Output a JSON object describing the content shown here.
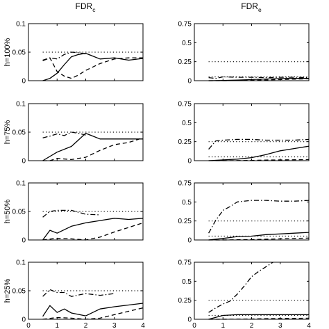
{
  "columns": [
    {
      "key": "c",
      "base": "FDR",
      "sub": "c"
    },
    {
      "key": "e",
      "base": "FDR",
      "sub": "e"
    }
  ],
  "rows": [
    "h=100%",
    "h=75%",
    "h=50%",
    "h=25%"
  ],
  "chart_data": [
    {
      "type": "line",
      "row": "h=100%",
      "col": "FDR_c",
      "xlim": [
        0,
        4
      ],
      "ylim": [
        0,
        0.1
      ],
      "yticks": [
        "0",
        "0.05",
        "0.1"
      ],
      "xticks": [],
      "series": [
        {
          "style": "solid",
          "x": [
            0.5,
            0.75,
            1,
            1.25,
            1.5,
            1.75,
            2,
            2.5,
            3,
            3.5,
            4
          ],
          "y": [
            0,
            0.004,
            0.013,
            0.028,
            0.042,
            0.046,
            0.048,
            0.038,
            0.04,
            0.036,
            0.039
          ]
        },
        {
          "style": "dashed",
          "x": [
            0.5,
            0.75,
            1,
            1.25,
            1.5,
            1.75,
            2,
            2.5,
            3,
            3.5,
            4
          ],
          "y": [
            0.036,
            0.04,
            0.016,
            0.008,
            0.004,
            0.01,
            0.018,
            0.03,
            0.038,
            0.04,
            0.04
          ]
        },
        {
          "style": "dashdot",
          "x": [
            0.5,
            0.75,
            1,
            1.25,
            1.5,
            1.75,
            2
          ],
          "y": [
            0.035,
            0.04,
            0.038,
            0.046,
            0.05,
            0.049,
            0.047
          ]
        },
        {
          "style": "dotted",
          "x": [
            0.5,
            4
          ],
          "y": [
            0.05,
            0.05
          ]
        }
      ]
    },
    {
      "type": "line",
      "row": "h=100%",
      "col": "FDR_e",
      "xlim": [
        0,
        4
      ],
      "ylim": [
        0,
        0.75
      ],
      "yticks": [
        "0",
        "0.25",
        "0.5",
        "0.75"
      ],
      "xticks": [],
      "series": [
        {
          "style": "solid",
          "x": [
            0.5,
            1,
            1.5,
            2,
            2.5,
            3,
            3.5,
            4
          ],
          "y": [
            0,
            0.003,
            0.008,
            0.015,
            0.022,
            0.028,
            0.03,
            0.03
          ]
        },
        {
          "style": "dashed",
          "x": [
            0.5,
            1,
            1.5,
            2,
            2.5,
            3,
            3.5,
            4
          ],
          "y": [
            0,
            0,
            0.002,
            0.005,
            0.01,
            0.015,
            0.02,
            0.025
          ]
        },
        {
          "style": "dashdot",
          "x": [
            0.5,
            0.75,
            1,
            1.5,
            2,
            2.5,
            3,
            3.5,
            4
          ],
          "y": [
            0.04,
            0.03,
            0.05,
            0.045,
            0.045,
            0.04,
            0.045,
            0.045,
            0.04
          ]
        },
        {
          "style": "dotted",
          "x": [
            0.5,
            4
          ],
          "y": [
            0.25,
            0.25
          ]
        },
        {
          "style": "dotted",
          "x": [
            0.5,
            4
          ],
          "y": [
            0.05,
            0.05
          ]
        }
      ]
    },
    {
      "type": "line",
      "row": "h=75%",
      "col": "FDR_c",
      "xlim": [
        0,
        4
      ],
      "ylim": [
        0,
        0.1
      ],
      "yticks": [
        "0",
        "0.05",
        "0.1"
      ],
      "xticks": [],
      "series": [
        {
          "style": "solid",
          "x": [
            0.5,
            1,
            1.5,
            2,
            2.5,
            3,
            3.5,
            4
          ],
          "y": [
            0,
            0.015,
            0.025,
            0.048,
            0.038,
            0.038,
            0.038,
            0.038
          ]
        },
        {
          "style": "dashed",
          "x": [
            0.5,
            0.75,
            1,
            1.5,
            2,
            2.5,
            3,
            3.5,
            4
          ],
          "y": [
            0,
            0,
            0.004,
            0.002,
            0.006,
            0.018,
            0.028,
            0.032,
            0.04
          ]
        },
        {
          "style": "dashdot",
          "x": [
            0.5,
            0.75,
            1,
            1.25,
            1.5,
            1.75,
            2
          ],
          "y": [
            0.04,
            0.043,
            0.047,
            0.044,
            0.05,
            0.048,
            0.045
          ]
        },
        {
          "style": "dotted",
          "x": [
            0.5,
            4
          ],
          "y": [
            0.05,
            0.05
          ]
        }
      ]
    },
    {
      "type": "line",
      "row": "h=75%",
      "col": "FDR_e",
      "xlim": [
        0,
        4
      ],
      "ylim": [
        0,
        0.75
      ],
      "yticks": [
        "0",
        "0.25",
        "0.5",
        "0.75"
      ],
      "xticks": [],
      "series": [
        {
          "style": "solid",
          "x": [
            0.5,
            1,
            1.5,
            2,
            2.5,
            3,
            3.5,
            4
          ],
          "y": [
            0,
            0.01,
            0.02,
            0.04,
            0.08,
            0.13,
            0.16,
            0.19
          ]
        },
        {
          "style": "dashed",
          "x": [
            0.5,
            1,
            1.5,
            2,
            2.5,
            3,
            3.5,
            4
          ],
          "y": [
            0,
            0,
            0.002,
            0.004,
            0.008,
            0.01,
            0.012,
            0.015
          ]
        },
        {
          "style": "dashdot",
          "x": [
            0.5,
            0.75,
            1,
            1.5,
            2,
            2.5,
            3,
            3.5,
            4
          ],
          "y": [
            0.15,
            0.26,
            0.27,
            0.28,
            0.28,
            0.27,
            0.27,
            0.27,
            0.28
          ]
        },
        {
          "style": "dotted",
          "x": [
            0.5,
            4
          ],
          "y": [
            0.25,
            0.25
          ]
        },
        {
          "style": "dotted",
          "x": [
            0.5,
            4
          ],
          "y": [
            0.05,
            0.05
          ]
        }
      ]
    },
    {
      "type": "line",
      "row": "h=50%",
      "col": "FDR_c",
      "xlim": [
        0,
        4
      ],
      "ylim": [
        0,
        0.1
      ],
      "yticks": [
        "0",
        "0.05",
        "0.1"
      ],
      "xticks": [],
      "series": [
        {
          "style": "solid",
          "x": [
            0.5,
            0.75,
            1,
            1.5,
            2,
            2.5,
            3,
            3.5,
            4
          ],
          "y": [
            0,
            0.017,
            0.012,
            0.024,
            0.03,
            0.034,
            0.038,
            0.036,
            0.038
          ]
        },
        {
          "style": "dashed",
          "x": [
            0.5,
            1,
            1.5,
            2,
            2.5,
            3,
            3.5,
            4
          ],
          "y": [
            0,
            0.003,
            0.002,
            0,
            0.005,
            0.014,
            0.022,
            0.03
          ]
        },
        {
          "style": "dashdot",
          "x": [
            0.5,
            0.75,
            1,
            1.5,
            2,
            2.5
          ],
          "y": [
            0.04,
            0.05,
            0.052,
            0.052,
            0.045,
            0.044
          ]
        },
        {
          "style": "dotted",
          "x": [
            0.5,
            4
          ],
          "y": [
            0.05,
            0.05
          ]
        }
      ]
    },
    {
      "type": "line",
      "row": "h=50%",
      "col": "FDR_e",
      "xlim": [
        0,
        4
      ],
      "ylim": [
        0,
        0.75
      ],
      "yticks": [
        "0",
        "0.25",
        "0.5",
        "0.75"
      ],
      "xticks": [],
      "series": [
        {
          "style": "solid",
          "x": [
            0.5,
            1,
            1.5,
            2,
            2.5,
            3,
            3.5,
            4
          ],
          "y": [
            0,
            0.02,
            0.045,
            0.05,
            0.07,
            0.08,
            0.09,
            0.1
          ]
        },
        {
          "style": "dashed",
          "x": [
            0.5,
            1,
            1.5,
            2,
            2.5,
            3,
            3.5,
            4
          ],
          "y": [
            0,
            0,
            0.003,
            0.005,
            0.01,
            0.015,
            0.02,
            0.025
          ]
        },
        {
          "style": "dashdot",
          "x": [
            0.5,
            0.75,
            1,
            1.25,
            1.5,
            2,
            2.5,
            3,
            3.5,
            4
          ],
          "y": [
            0.09,
            0.26,
            0.39,
            0.44,
            0.5,
            0.52,
            0.52,
            0.51,
            0.51,
            0.52
          ]
        },
        {
          "style": "dotted",
          "x": [
            0.5,
            4
          ],
          "y": [
            0.25,
            0.25
          ]
        },
        {
          "style": "dotted",
          "x": [
            0.5,
            4
          ],
          "y": [
            0.05,
            0.05
          ]
        }
      ]
    },
    {
      "type": "line",
      "row": "h=25%",
      "col": "FDR_c",
      "xlim": [
        0,
        4
      ],
      "ylim": [
        0,
        0.1
      ],
      "yticks": [
        "0",
        "0.05",
        "0.1"
      ],
      "xticks": [
        "0",
        "1",
        "2",
        "3",
        "4"
      ],
      "series": [
        {
          "style": "solid",
          "x": [
            0.5,
            0.75,
            1,
            1.25,
            1.5,
            2,
            2.5,
            3,
            3.5,
            4
          ],
          "y": [
            0.005,
            0.024,
            0.012,
            0.018,
            0.011,
            0.006,
            0.018,
            0.022,
            0.025,
            0.028
          ]
        },
        {
          "style": "dashed",
          "x": [
            0.5,
            1,
            1.5,
            2,
            2.5,
            3,
            3.5,
            4
          ],
          "y": [
            0,
            0.003,
            0.002,
            0,
            0.002,
            0.008,
            0.014,
            0.02
          ]
        },
        {
          "style": "dashdot",
          "x": [
            0.5,
            0.75,
            1,
            1.25,
            1.5,
            2,
            2.5,
            3
          ],
          "y": [
            0.04,
            0.052,
            0.047,
            0.047,
            0.04,
            0.045,
            0.042,
            0.045
          ]
        },
        {
          "style": "dotted",
          "x": [
            0.5,
            4
          ],
          "y": [
            0.05,
            0.05
          ]
        }
      ]
    },
    {
      "type": "line",
      "row": "h=25%",
      "col": "FDR_e",
      "xlim": [
        0,
        4
      ],
      "ylim": [
        0,
        0.75
      ],
      "yticks": [
        "0",
        "0.25",
        "0.5",
        "0.75"
      ],
      "xticks": [
        "0",
        "1",
        "2",
        "3",
        "4"
      ],
      "series": [
        {
          "style": "solid",
          "x": [
            0.5,
            1,
            1.5,
            2,
            2.5,
            3,
            3.5,
            4
          ],
          "y": [
            0,
            0.05,
            0.06,
            0.06,
            0.06,
            0.06,
            0.06,
            0.06
          ]
        },
        {
          "style": "dashed",
          "x": [
            0.5,
            1,
            1.5,
            2,
            2.5,
            3,
            3.5,
            4
          ],
          "y": [
            0,
            0,
            0.002,
            0.004,
            0.008,
            0.01,
            0.012,
            0.015
          ]
        },
        {
          "style": "dashdot",
          "x": [
            0.5,
            0.75,
            1,
            1.25,
            1.5,
            1.75,
            2,
            2.25,
            2.5,
            2.75
          ],
          "y": [
            0.09,
            0.15,
            0.2,
            0.24,
            0.33,
            0.44,
            0.56,
            0.63,
            0.69,
            0.75
          ]
        },
        {
          "style": "dotted",
          "x": [
            0.5,
            4
          ],
          "y": [
            0.25,
            0.25
          ]
        },
        {
          "style": "dotted",
          "x": [
            0.5,
            4
          ],
          "y": [
            0.05,
            0.05
          ]
        }
      ]
    }
  ]
}
